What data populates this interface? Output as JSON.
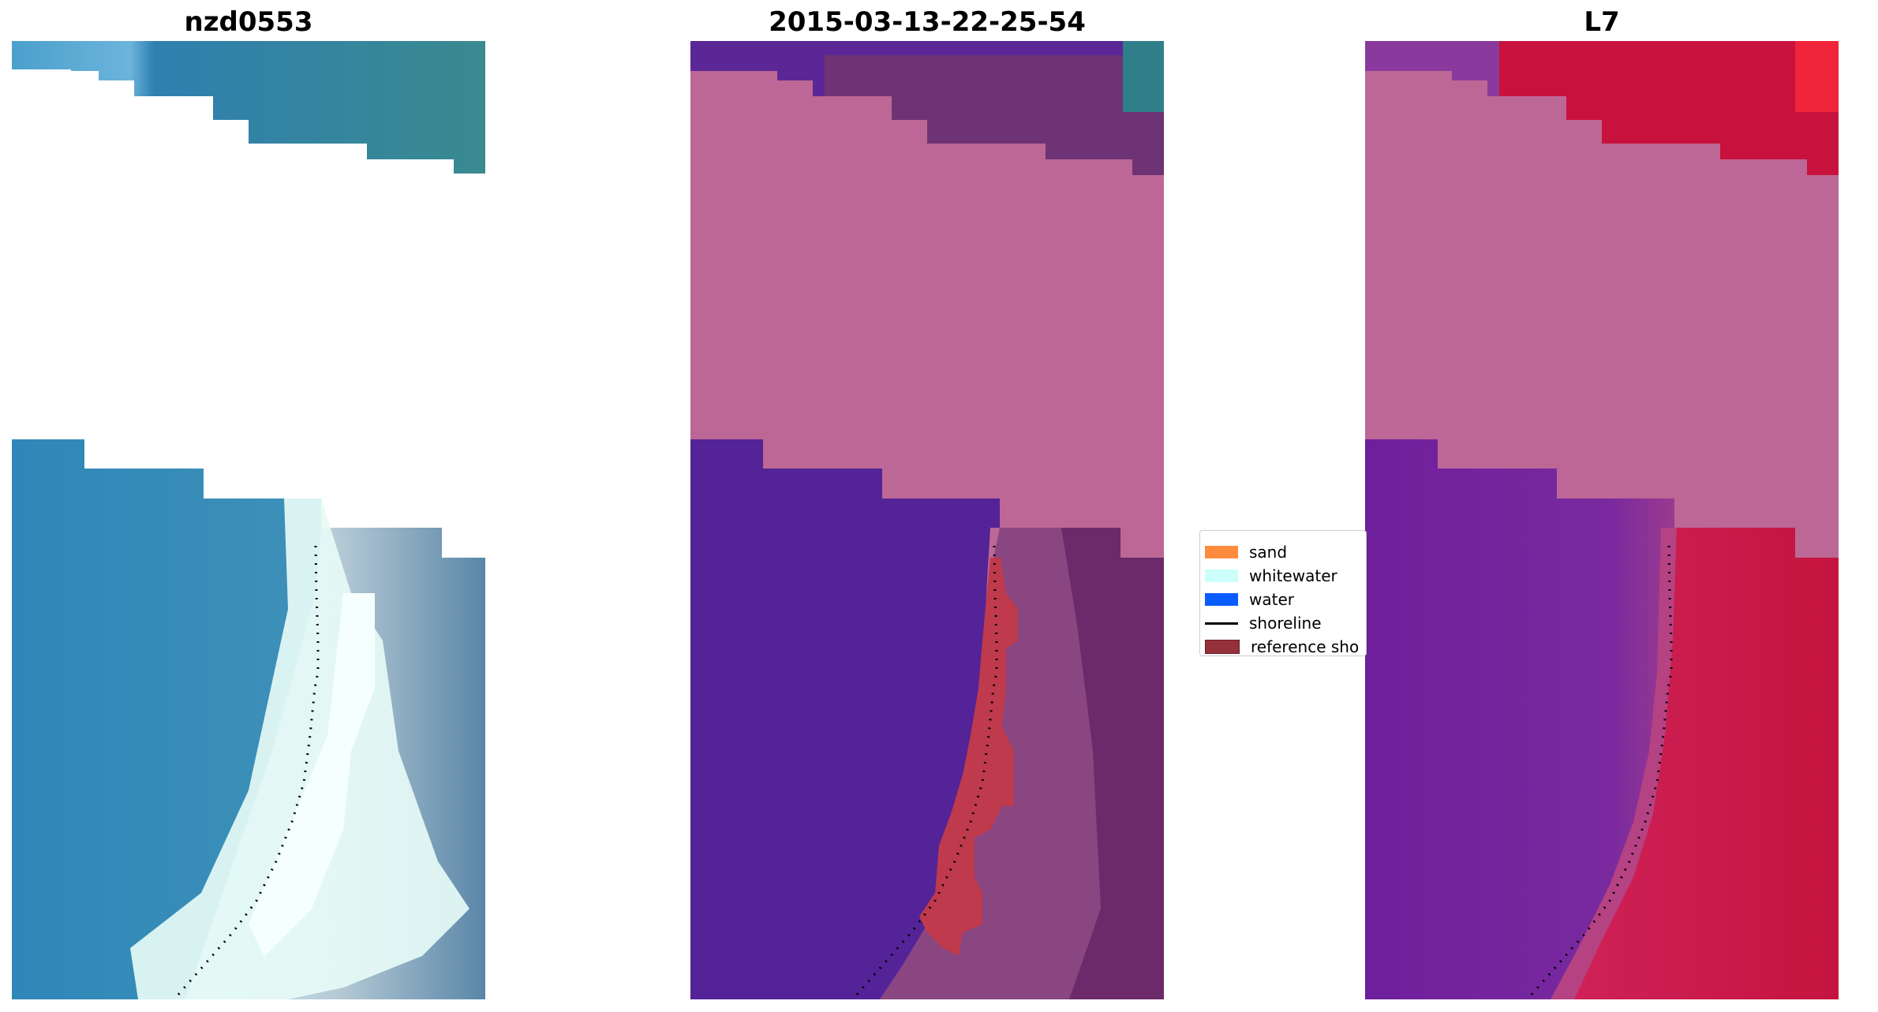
{
  "titles": {
    "panel1": "nzd0553",
    "panel2": "2015-03-13-22-25-54",
    "panel3": "L7"
  },
  "legend": {
    "items": [
      {
        "label": "sand",
        "color": "#ff8c3c",
        "kind": "patch"
      },
      {
        "label": "whitewater",
        "color": "#ccfffb",
        "kind": "patch"
      },
      {
        "label": "water",
        "color": "#0a5cff",
        "kind": "patch"
      },
      {
        "label": "shoreline",
        "color": "#000000",
        "kind": "line"
      },
      {
        "label": "reference sho",
        "color": "#96303a",
        "kind": "patch"
      }
    ]
  },
  "colors": {
    "rgb_water": "#3a85b0",
    "rgb_whitewater": "#e6fbf6",
    "nodata": "#bc6795",
    "classified_water": "#532397",
    "classified_land": "#7a3a78",
    "reference_band": "#bf3a4c",
    "mndwi_water": "#6f1f9c",
    "mndwi_land": "#c41a48"
  }
}
